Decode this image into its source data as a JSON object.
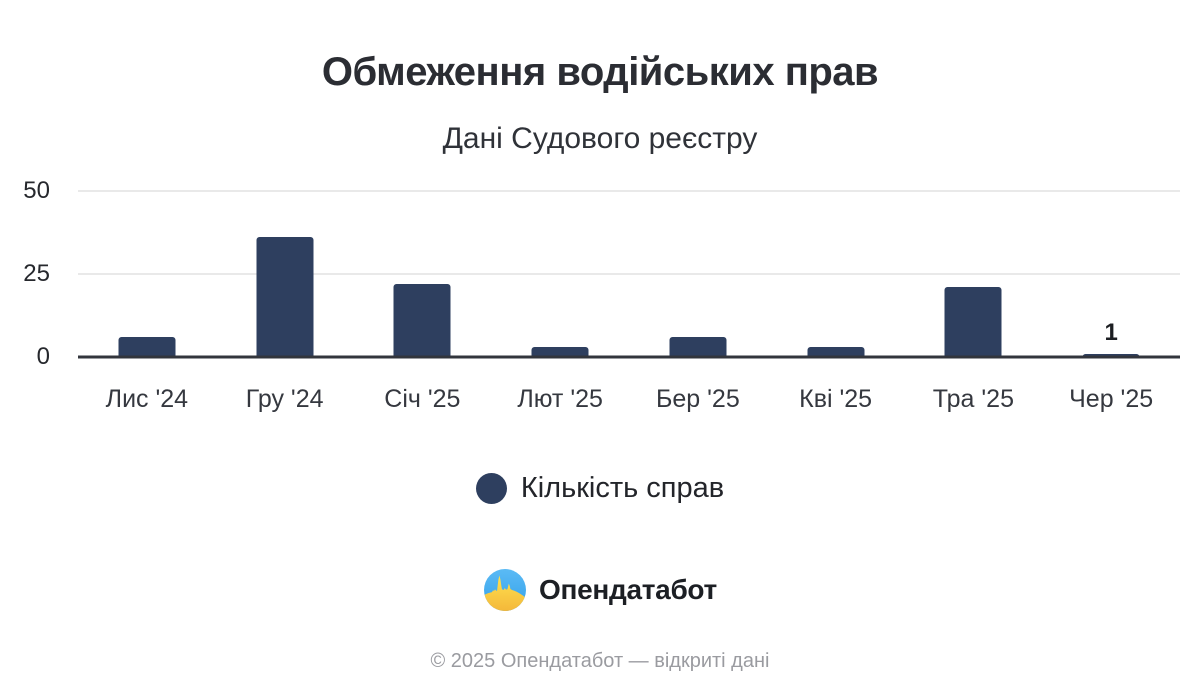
{
  "header": {
    "title": "Обмеження водійських прав",
    "subtitle": "Дані Судового реєстру"
  },
  "chart_data": {
    "type": "bar",
    "categories": [
      "Лис '24",
      "Гру '24",
      "Січ '25",
      "Лют '25",
      "Бер '25",
      "Кві '25",
      "Тра '25",
      "Чер '25"
    ],
    "values": [
      6,
      36,
      22,
      3,
      6,
      3,
      21,
      1
    ],
    "data_labels": [
      "",
      "",
      "",
      "",
      "",
      "",
      "",
      "1"
    ],
    "series_name": "Кількість справ",
    "title": "Обмеження водійських прав",
    "subtitle": "Дані Судового реєстру",
    "xlabel": "",
    "ylabel": "",
    "ylim": [
      0,
      50
    ],
    "yticks": [
      0,
      25,
      50
    ],
    "grid": true,
    "legend_position": "bottom",
    "bar_color": "#2e3f5f"
  },
  "legend": {
    "label": "Кількість справ",
    "swatch_color": "#2e3f5f"
  },
  "branding": {
    "logo_text": "Опендатабот"
  },
  "footer": {
    "text": "© 2025 Опендатабот — відкриті дані"
  },
  "colors": {
    "bar": "#2e3f5f",
    "axis": "#32353c",
    "grid": "#e9e9e9",
    "title_text": "#2b2d33",
    "label_text": "#35383f",
    "muted_text": "#9a9ba0",
    "logo_blue": "#47aef0",
    "logo_yellow": "#ffd84d"
  }
}
